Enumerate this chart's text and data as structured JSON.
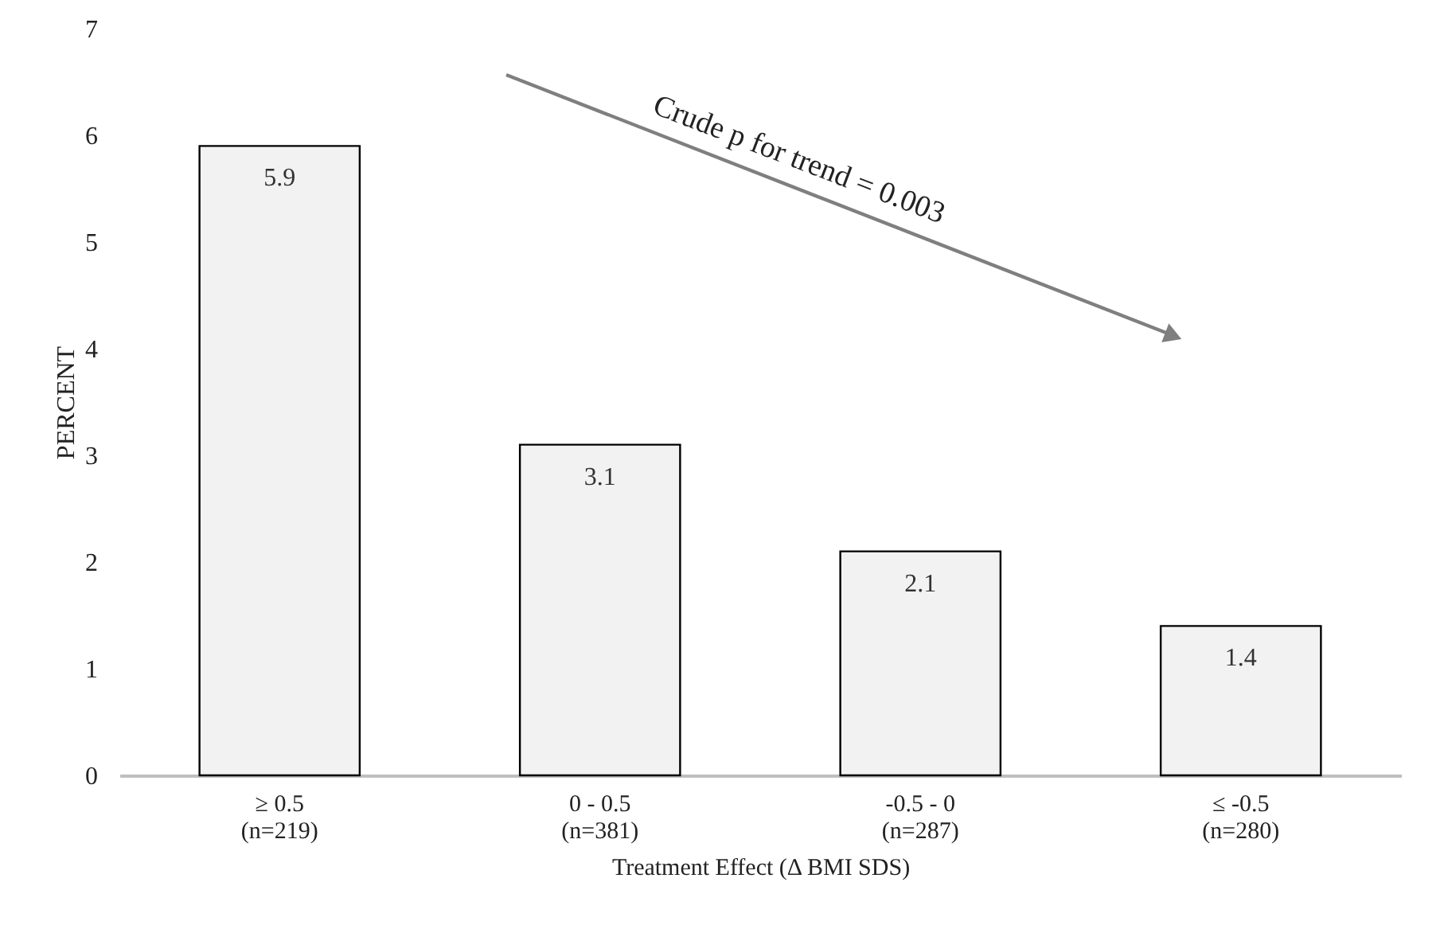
{
  "chart_data": {
    "type": "bar",
    "categories": [
      "≥ 0.5\n(n=219)",
      "0 - 0.5\n(n=381)",
      "-0.5 - 0\n(n=287)",
      "≤ -0.5\n(n=280)"
    ],
    "values": [
      5.9,
      3.1,
      2.1,
      1.4
    ],
    "color": "#f2f2f2",
    "xlabel": "Treatment Effect (Δ BMI SDS)",
    "ylabel": "PERCENT",
    "ylim": [
      0,
      7
    ],
    "yticks": [
      0,
      1,
      2,
      3,
      4,
      5,
      6,
      7
    ],
    "grid": false,
    "data_labels": true,
    "annotations": [
      "Crude p for trend = 0.003"
    ]
  }
}
